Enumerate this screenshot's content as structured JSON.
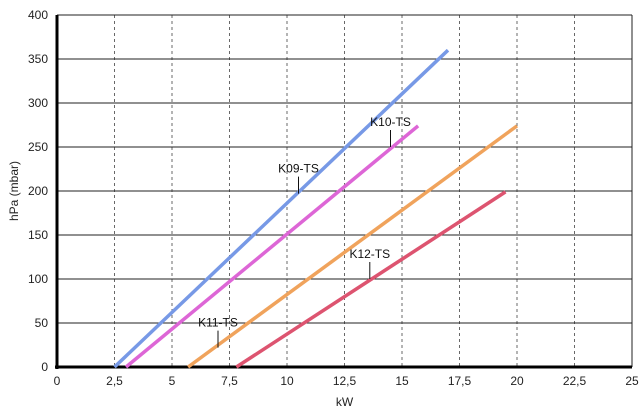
{
  "chart_data": {
    "type": "line",
    "title": "",
    "xlabel": "kW",
    "ylabel": "hPa (mbar)",
    "xlim": [
      0,
      25
    ],
    "ylim": [
      0,
      400
    ],
    "x_ticks": [
      "0",
      "2,5",
      "5",
      "7,5",
      "10",
      "12,5",
      "15",
      "17,5",
      "20",
      "22,5",
      "25"
    ],
    "y_ticks": [
      "0",
      "50",
      "100",
      "150",
      "200",
      "250",
      "300",
      "350",
      "400"
    ],
    "grid": true,
    "legend": "none",
    "series": [
      {
        "name": "K10-TS",
        "color": "#7799e6",
        "points": [
          [
            2.5,
            0
          ],
          [
            17.0,
            360
          ]
        ],
        "label_at": [
          14.5,
          250
        ]
      },
      {
        "name": "K09-TS",
        "color": "#dd66d6",
        "points": [
          [
            3.0,
            0
          ],
          [
            15.7,
            274
          ]
        ],
        "label_at": [
          10.5,
          197
        ]
      },
      {
        "name": "K11-TS",
        "color": "#f0a35c",
        "points": [
          [
            5.7,
            0
          ],
          [
            20.0,
            274
          ]
        ],
        "label_at": [
          7.0,
          22
        ]
      },
      {
        "name": "K12-TS",
        "color": "#dd5470",
        "points": [
          [
            7.8,
            0
          ],
          [
            19.5,
            199
          ]
        ],
        "label_at": [
          13.6,
          100
        ]
      }
    ]
  }
}
